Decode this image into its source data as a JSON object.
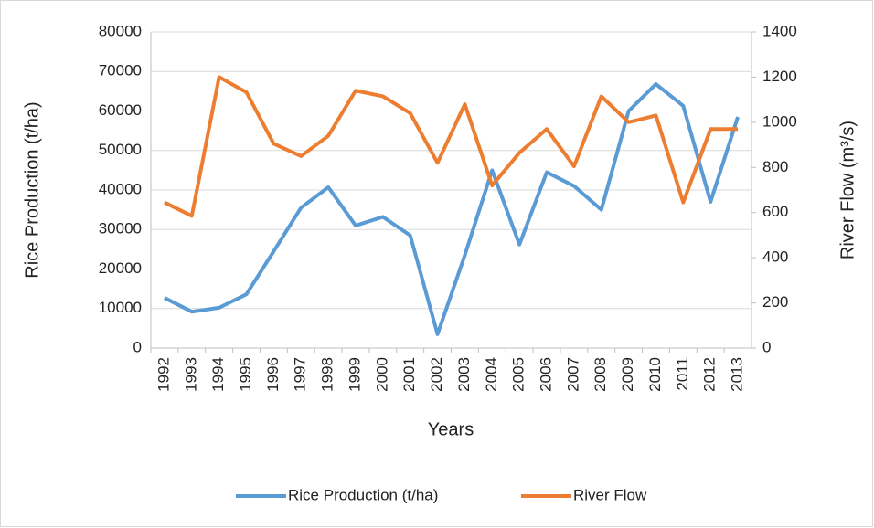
{
  "chart_data": {
    "type": "line",
    "x_label": "Years",
    "y_label": "Rice Production (t/ha)",
    "y2_label": "River Flow (m³/s)",
    "categories": [
      "1992",
      "1993",
      "1994",
      "1995",
      "1996",
      "1997",
      "1998",
      "1999",
      "2000",
      "2001",
      "2002",
      "2003",
      "2004",
      "2005",
      "2006",
      "2007",
      "2008",
      "2009",
      "2010",
      "2011",
      "2012",
      "2013"
    ],
    "series": [
      {
        "name": "Rice Production (t/ha)",
        "color": "#5b9bd5",
        "values": [
          12700,
          9200,
          10200,
          13600,
          24500,
          35500,
          40700,
          31000,
          33200,
          28500,
          3500,
          23500,
          45000,
          26200,
          44500,
          41000,
          35000,
          60000,
          66800,
          61300,
          37000,
          58500
        ]
      },
      {
        "name": "River Flow",
        "color": "#ed7d31",
        "axis": "y2",
        "values": [
          645,
          585,
          1200,
          1133,
          905,
          850,
          940,
          1140,
          1115,
          1040,
          820,
          1080,
          720,
          865,
          970,
          805,
          1115,
          1000,
          1030,
          645,
          970,
          970
        ]
      }
    ],
    "ylim": [
      0,
      80000
    ],
    "yticks": [
      0,
      10000,
      20000,
      30000,
      40000,
      50000,
      60000,
      70000,
      80000
    ],
    "y2lim": [
      0,
      1400
    ],
    "y2ticks": [
      0,
      200,
      400,
      600,
      800,
      1000,
      1200,
      1400
    ],
    "grid": true,
    "legend": "bottom"
  }
}
